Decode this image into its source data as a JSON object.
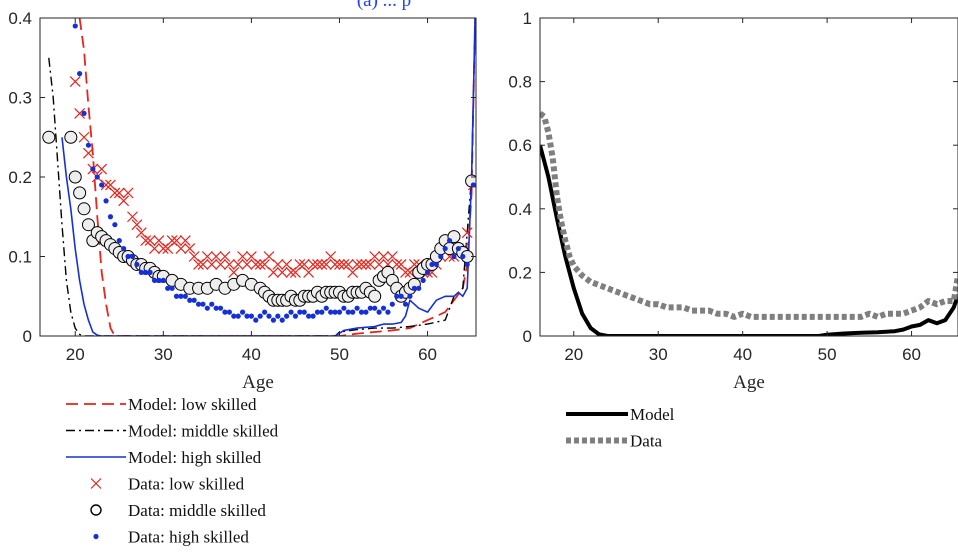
{
  "chart_data": [
    {
      "type": "line",
      "title": "(a) ... p",
      "xlabel": "Age",
      "ylabel": "",
      "xlim": [
        16,
        65.5
      ],
      "ylim": [
        0,
        0.4
      ],
      "xticks": [
        20,
        30,
        40,
        50,
        60
      ],
      "yticks": [
        0,
        0.1,
        0.2,
        0.3,
        0.4
      ],
      "xtick_labels": [
        "20",
        "30",
        "40",
        "50",
        "60"
      ],
      "ytick_labels": [
        "0",
        "0.1",
        "0.2",
        "0.3",
        "0.4"
      ],
      "grid": false,
      "legend_position": "below",
      "series": [
        {
          "name": "Model: low skilled",
          "kind": "line",
          "style": "dashed",
          "color": "#e8241d",
          "x": [
            20.5,
            21,
            21.5,
            22,
            22.5,
            23,
            23.5,
            24,
            24.5,
            30,
            40,
            48,
            50,
            52,
            54,
            56,
            58,
            59,
            60,
            61,
            62,
            63,
            64,
            64.5,
            65,
            65.4
          ],
          "y": [
            0.4,
            0.36,
            0.29,
            0.23,
            0.15,
            0.08,
            0.04,
            0.01,
            0.0,
            0.0,
            0.0,
            0.0,
            0.0,
            0.003,
            0.005,
            0.007,
            0.01,
            0.015,
            0.02,
            0.025,
            0.03,
            0.045,
            0.06,
            0.09,
            0.18,
            0.4
          ]
        },
        {
          "name": "Model: middle skilled",
          "kind": "line",
          "style": "dashdot",
          "color": "#000000",
          "x": [
            17,
            17.5,
            18,
            18.5,
            19,
            19.5,
            20,
            20.5,
            21,
            30,
            40,
            49.5,
            50,
            52,
            54,
            56,
            58,
            60,
            62,
            63,
            64,
            65,
            65.4
          ],
          "y": [
            0.35,
            0.3,
            0.22,
            0.14,
            0.07,
            0.03,
            0.01,
            0.002,
            0.0,
            0.0,
            0.0,
            0.0,
            0.005,
            0.008,
            0.01,
            0.01,
            0.012,
            0.015,
            0.02,
            0.05,
            0.06,
            0.2,
            0.4
          ]
        },
        {
          "name": "Model: high skilled",
          "kind": "line",
          "style": "solid",
          "color": "#1530d8",
          "x": [
            18.5,
            19,
            19.5,
            20,
            20.5,
            21,
            21.5,
            22,
            22.5,
            23,
            30,
            40,
            49.5,
            50.5,
            52,
            54,
            55,
            56,
            57,
            57.5,
            58,
            59,
            60,
            61,
            62,
            62.5,
            63,
            63.5,
            64,
            64.5,
            65,
            65.4
          ],
          "y": [
            0.25,
            0.2,
            0.16,
            0.11,
            0.07,
            0.04,
            0.02,
            0.005,
            0.001,
            0.0,
            0.0,
            0.0,
            0.0,
            0.007,
            0.01,
            0.012,
            0.015,
            0.015,
            0.017,
            0.025,
            0.045,
            0.035,
            0.03,
            0.045,
            0.05,
            0.05,
            0.05,
            0.055,
            0.05,
            0.06,
            0.2,
            0.4
          ]
        },
        {
          "name": "Data: low skilled",
          "kind": "scatter",
          "marker": "x",
          "color": "#e8241d",
          "x": [
            20,
            20.5,
            21,
            21.5,
            22,
            22.5,
            23,
            23.5,
            24,
            24.5,
            25,
            25.5,
            26,
            26.5,
            27,
            27.5,
            28,
            28.5,
            29,
            29.5,
            30,
            30.5,
            31,
            31.5,
            32,
            32.5,
            33,
            33.5,
            34,
            34.5,
            35,
            35.5,
            36,
            36.5,
            37,
            37.5,
            38,
            38.5,
            39,
            39.5,
            40,
            40.5,
            41,
            41.5,
            42,
            42.5,
            43,
            43.5,
            44,
            44.5,
            45,
            45.5,
            46,
            46.5,
            47,
            47.5,
            48,
            48.5,
            49,
            49.5,
            50,
            50.5,
            51,
            51.5,
            52,
            52.5,
            53,
            53.5,
            54,
            54.5,
            55,
            55.5,
            56,
            56.5,
            57,
            57.5,
            58,
            58.5,
            59,
            59.5,
            60,
            60.5,
            61,
            61.5,
            62,
            62.5,
            63,
            63.5,
            64,
            64.5
          ],
          "y": [
            0.32,
            0.28,
            0.25,
            0.23,
            0.21,
            0.2,
            0.21,
            0.19,
            0.19,
            0.18,
            0.18,
            0.17,
            0.18,
            0.15,
            0.14,
            0.13,
            0.12,
            0.12,
            0.11,
            0.12,
            0.11,
            0.11,
            0.12,
            0.12,
            0.11,
            0.12,
            0.11,
            0.1,
            0.09,
            0.09,
            0.1,
            0.09,
            0.1,
            0.09,
            0.1,
            0.09,
            0.08,
            0.09,
            0.1,
            0.09,
            0.1,
            0.09,
            0.09,
            0.09,
            0.1,
            0.08,
            0.09,
            0.08,
            0.09,
            0.08,
            0.08,
            0.09,
            0.09,
            0.08,
            0.09,
            0.09,
            0.09,
            0.09,
            0.1,
            0.09,
            0.09,
            0.09,
            0.09,
            0.08,
            0.09,
            0.09,
            0.09,
            0.09,
            0.1,
            0.09,
            0.1,
            0.09,
            0.1,
            0.09,
            0.09,
            0.08,
            0.08,
            0.09,
            0.09,
            0.08,
            0.08,
            0.08,
            0.09,
            0.1,
            0.11,
            0.1,
            0.1,
            0.11,
            0.11,
            0.13
          ],
          "extra": [
            [
              65.2,
              0.19
            ]
          ]
        },
        {
          "name": "Data: middle skilled",
          "kind": "scatter",
          "marker": "o",
          "color": "#000000",
          "x": [
            17,
            19.5,
            20,
            20.5,
            21,
            21.5,
            22,
            22.5,
            23,
            23.5,
            24,
            24.5,
            25,
            25.5,
            26,
            26.5,
            27,
            27.5,
            28,
            28.5,
            29,
            29.5,
            30,
            31,
            32,
            33,
            34,
            35,
            36,
            37,
            38,
            39,
            40,
            41,
            41.5,
            42,
            42.5,
            43,
            43.5,
            44,
            44.5,
            45,
            45.5,
            46,
            46.5,
            47,
            47.5,
            48,
            48.5,
            49,
            49.5,
            50,
            50.5,
            51,
            51.5,
            52,
            52.5,
            53,
            53.5,
            54,
            54.5,
            55,
            55.5,
            56,
            56.5,
            57,
            57.5,
            58,
            58.5,
            59,
            59.5,
            60,
            60.5,
            61,
            61.5,
            62,
            62.5,
            63,
            63.5,
            64,
            64.5,
            65
          ],
          "y": [
            0.25,
            0.25,
            0.2,
            0.18,
            0.16,
            0.14,
            0.12,
            0.13,
            0.125,
            0.12,
            0.115,
            0.11,
            0.105,
            0.1,
            0.1,
            0.095,
            0.09,
            0.09,
            0.085,
            0.085,
            0.08,
            0.075,
            0.075,
            0.07,
            0.065,
            0.06,
            0.06,
            0.06,
            0.065,
            0.06,
            0.065,
            0.07,
            0.065,
            0.06,
            0.055,
            0.05,
            0.045,
            0.045,
            0.045,
            0.045,
            0.05,
            0.045,
            0.045,
            0.05,
            0.05,
            0.05,
            0.055,
            0.05,
            0.055,
            0.055,
            0.055,
            0.055,
            0.05,
            0.05,
            0.055,
            0.055,
            0.055,
            0.06,
            0.055,
            0.05,
            0.07,
            0.075,
            0.08,
            0.07,
            0.06,
            0.05,
            0.055,
            0.06,
            0.065,
            0.08,
            0.085,
            0.09,
            0.09,
            0.1,
            0.11,
            0.12,
            0.11,
            0.125,
            0.11,
            0.105,
            0.1,
            0.195
          ]
        },
        {
          "name": "Data: high skilled",
          "kind": "scatter",
          "marker": ".",
          "color": "#1530d8",
          "x": [
            20,
            20.5,
            21,
            21.5,
            22,
            22.5,
            23,
            23.5,
            24,
            24.5,
            25,
            25.5,
            26,
            26.5,
            27,
            27.5,
            28,
            28.5,
            29,
            29.5,
            30,
            30.5,
            31,
            31.5,
            32,
            32.5,
            33,
            33.5,
            34,
            34.5,
            35,
            35.5,
            36,
            36.5,
            37,
            37.5,
            38,
            38.5,
            39,
            39.5,
            40,
            40.5,
            41,
            41.5,
            42,
            42.5,
            43,
            43.5,
            44,
            44.5,
            45,
            45.5,
            46,
            46.5,
            47,
            47.5,
            48,
            48.5,
            49,
            49.5,
            50,
            50.5,
            51,
            51.5,
            52,
            52.5,
            53,
            53.5,
            54,
            54.5,
            55,
            55.5,
            56,
            56.5,
            57,
            57.5,
            58,
            58.5,
            59,
            59.5,
            60,
            60.5,
            61,
            61.5,
            62,
            62.5,
            63,
            63.5,
            64,
            64.5
          ],
          "y": [
            0.39,
            0.33,
            0.28,
            0.24,
            0.21,
            0.2,
            0.19,
            0.17,
            0.15,
            0.14,
            0.12,
            0.11,
            0.1,
            0.1,
            0.09,
            0.08,
            0.08,
            0.08,
            0.07,
            0.07,
            0.07,
            0.06,
            0.06,
            0.05,
            0.05,
            0.05,
            0.045,
            0.045,
            0.04,
            0.04,
            0.035,
            0.04,
            0.035,
            0.035,
            0.03,
            0.03,
            0.025,
            0.025,
            0.03,
            0.025,
            0.025,
            0.02,
            0.025,
            0.03,
            0.025,
            0.02,
            0.025,
            0.02,
            0.025,
            0.03,
            0.025,
            0.03,
            0.03,
            0.025,
            0.025,
            0.03,
            0.03,
            0.035,
            0.03,
            0.03,
            0.03,
            0.035,
            0.03,
            0.03,
            0.035,
            0.03,
            0.03,
            0.035,
            0.035,
            0.03,
            0.035,
            0.03,
            0.04,
            0.05,
            0.05,
            0.04,
            0.05,
            0.06,
            0.06,
            0.07,
            0.08,
            0.09,
            0.09,
            0.1,
            0.11,
            0.12,
            0.1,
            0.11,
            0.1,
            0.09
          ],
          "extra": [
            [
              65.2,
              0.19
            ]
          ]
        }
      ]
    },
    {
      "type": "line",
      "title": "",
      "xlabel": "Age",
      "ylabel": "",
      "xlim": [
        16,
        65.5
      ],
      "ylim": [
        0,
        1
      ],
      "xticks": [
        20,
        30,
        40,
        50,
        60
      ],
      "yticks": [
        0,
        0.2,
        0.4,
        0.6,
        0.8,
        1
      ],
      "xtick_labels": [
        "20",
        "30",
        "40",
        "50",
        "60"
      ],
      "ytick_labels": [
        "0",
        "0.2",
        "0.4",
        "0.6",
        "0.8",
        "1"
      ],
      "grid": false,
      "legend_position": "below",
      "series": [
        {
          "name": "Model",
          "kind": "line",
          "style": "solid",
          "color": "#000000",
          "x": [
            16,
            17,
            18,
            19,
            20,
            21,
            22,
            23,
            24,
            25,
            30,
            40,
            49,
            50,
            52,
            54,
            56,
            58,
            59,
            60,
            61,
            62,
            63,
            64,
            65,
            65.5
          ],
          "y": [
            0.6,
            0.5,
            0.37,
            0.25,
            0.15,
            0.07,
            0.025,
            0.005,
            0.0,
            0.0,
            0.0,
            0.0,
            0.0,
            0.004,
            0.008,
            0.01,
            0.012,
            0.015,
            0.02,
            0.03,
            0.035,
            0.05,
            0.04,
            0.05,
            0.09,
            0.13
          ]
        },
        {
          "name": "Data",
          "kind": "line",
          "style": "dotted",
          "color": "#7f7f7f",
          "x": [
            16,
            16.5,
            17,
            17.5,
            18,
            18.5,
            19,
            19.5,
            20,
            21,
            22,
            23,
            24,
            25,
            26,
            27,
            28,
            29,
            30,
            31,
            32,
            33,
            34,
            35,
            36,
            37,
            38,
            39,
            40,
            41,
            42,
            43,
            44,
            45,
            46,
            47,
            48,
            49,
            50,
            51,
            52,
            53,
            54,
            55,
            56,
            57,
            58,
            59,
            60,
            61,
            62,
            63,
            64,
            65,
            65.5
          ],
          "y": [
            0.7,
            0.69,
            0.64,
            0.56,
            0.44,
            0.36,
            0.3,
            0.25,
            0.22,
            0.19,
            0.17,
            0.16,
            0.15,
            0.14,
            0.13,
            0.12,
            0.11,
            0.1,
            0.1,
            0.09,
            0.09,
            0.09,
            0.08,
            0.08,
            0.08,
            0.07,
            0.07,
            0.06,
            0.07,
            0.06,
            0.06,
            0.06,
            0.06,
            0.06,
            0.06,
            0.06,
            0.06,
            0.06,
            0.06,
            0.06,
            0.06,
            0.06,
            0.06,
            0.07,
            0.06,
            0.07,
            0.07,
            0.07,
            0.08,
            0.09,
            0.11,
            0.1,
            0.11,
            0.11,
            0.19
          ]
        }
      ]
    }
  ]
}
